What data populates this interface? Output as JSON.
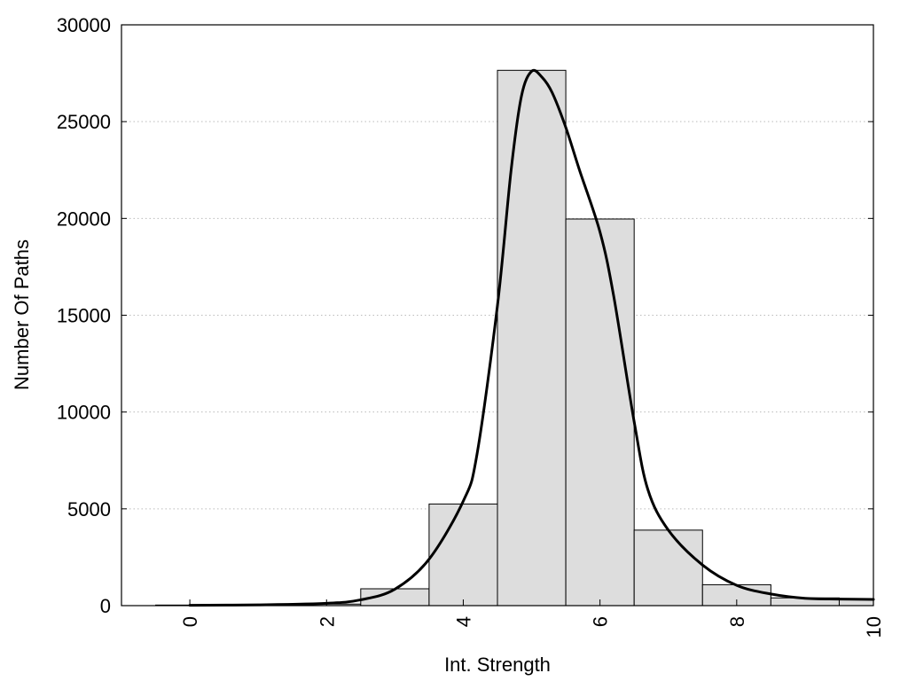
{
  "chart_data": {
    "type": "bar",
    "title": "",
    "xlabel": "Int. Strength",
    "ylabel": "Number Of Paths",
    "xlim": [
      -1,
      10
    ],
    "ylim": [
      0,
      30000
    ],
    "x_ticks": [
      0,
      2,
      4,
      6,
      8,
      10
    ],
    "x_tick_labels": [
      "0",
      "2",
      "4",
      "6",
      "8",
      "10"
    ],
    "y_ticks": [
      0,
      5000,
      10000,
      15000,
      20000,
      25000,
      30000
    ],
    "y_tick_labels": [
      "0",
      "5000",
      "10000",
      "15000",
      "20000",
      "25000",
      "30000"
    ],
    "grid": "horizontal dotted",
    "bar_color": "#dddddd",
    "curve_color": "#000000",
    "categories": [
      0,
      1,
      2,
      3,
      4,
      5,
      6,
      7,
      8,
      9,
      10
    ],
    "values": [
      30,
      40,
      80,
      870,
      5250,
      27650,
      19970,
      3900,
      1080,
      400,
      320
    ],
    "density_curve": {
      "x": [
        0,
        1,
        2,
        2.5,
        3,
        3.5,
        4,
        4.2,
        4.5,
        4.7,
        4.85,
        5.0,
        5.15,
        5.3,
        5.5,
        5.7,
        6.0,
        6.2,
        6.5,
        6.7,
        7.0,
        7.5,
        8.0,
        8.5,
        9.0,
        9.5,
        10
      ],
      "y": [
        20,
        40,
        120,
        300,
        850,
        2400,
        5400,
        7800,
        15500,
        22500,
        26300,
        27600,
        27300,
        26500,
        24700,
        22500,
        19300,
        16000,
        9500,
        6000,
        3900,
        2100,
        1050,
        600,
        380,
        340,
        320
      ]
    }
  }
}
